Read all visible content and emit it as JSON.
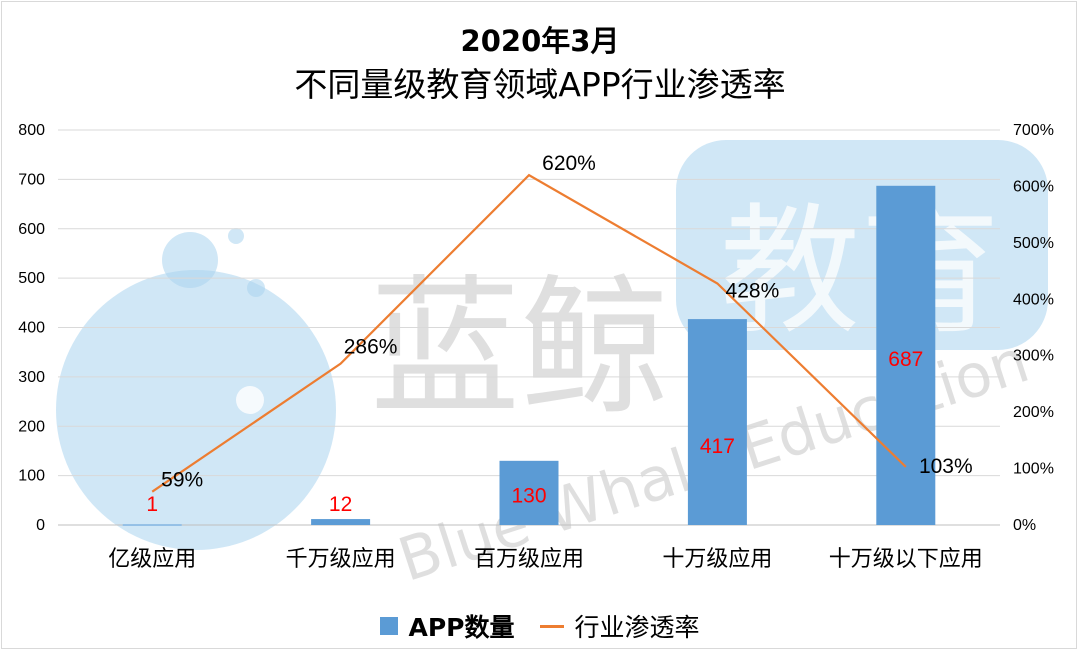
{
  "chart_data": {
    "type": "bar+line",
    "title": "2020年3月",
    "subtitle": "不同量级教育领域APP行业渗透率",
    "categories": [
      "亿级应用",
      "千万级应用",
      "百万级应用",
      "十万级应用",
      "十万级以下应用"
    ],
    "series": [
      {
        "name": "APP数量",
        "type": "bar",
        "axis": "left",
        "values": [
          1,
          12,
          130,
          417,
          687
        ],
        "labels": [
          "1",
          "12",
          "130",
          "417",
          "687"
        ]
      },
      {
        "name": "行业渗透率",
        "type": "line",
        "axis": "right",
        "values": [
          59,
          286,
          620,
          428,
          103
        ],
        "labels": [
          "59%",
          "286%",
          "620%",
          "428%",
          "103%"
        ]
      }
    ],
    "y_left": {
      "ylim": [
        0,
        800
      ],
      "ticks": [
        "0",
        "100",
        "200",
        "300",
        "400",
        "500",
        "600",
        "700",
        "800"
      ]
    },
    "y_right": {
      "ylim": [
        0,
        700
      ],
      "ticks": [
        "0%",
        "100%",
        "200%",
        "300%",
        "400%",
        "500%",
        "600%",
        "700%"
      ]
    },
    "grid": true,
    "legend_position": "bottom",
    "colors": {
      "bar": "#5b9bd5",
      "line": "#ed7d31",
      "bar_label": "#ff0000",
      "line_label": "#000000"
    }
  },
  "watermark": {
    "name": "蓝鲸教育",
    "english": "Blue Whale Education",
    "color": "#a9d4ef"
  }
}
